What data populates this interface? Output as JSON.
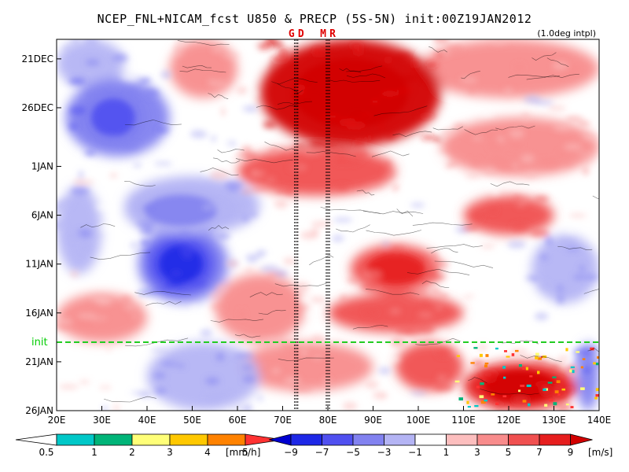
{
  "chart_data": {
    "type": "heatmap",
    "title": "NCEP_FNL+NICAM_fcst U850 & PRECP (5S-5N) init:00Z19JAN2012",
    "subtitle": "(1.0deg intpl)",
    "x_axis": {
      "range": [
        20,
        140
      ],
      "ticks": [
        20,
        30,
        40,
        50,
        60,
        70,
        80,
        90,
        100,
        110,
        120,
        130,
        140
      ],
      "tick_labels": [
        "20E",
        "30E",
        "40E",
        "50E",
        "60E",
        "70E",
        "80E",
        "90E",
        "100E",
        "110E",
        "120E",
        "130E",
        "140E"
      ]
    },
    "y_axis": {
      "range_days": [
        "19DEC2011",
        "26JAN2012"
      ],
      "tick_labels": [
        "21DEC",
        "26DEC",
        "1JAN",
        "6JAN",
        "11JAN",
        "16JAN",
        "21JAN",
        "26JAN"
      ],
      "tick_dates": [
        "2011-12-21",
        "2011-12-26",
        "2012-01-01",
        "2012-01-06",
        "2012-01-11",
        "2012-01-16",
        "2012-01-21",
        "2012-01-26"
      ]
    },
    "markers": [
      {
        "label": "G",
        "lon": 73,
        "style": "dotted"
      },
      {
        "label": "D",
        "lon": 73,
        "style": "dotted"
      },
      {
        "label": "M",
        "lon": 80,
        "style": "dotted"
      },
      {
        "label": "R",
        "lon": 80,
        "style": "dotted"
      }
    ],
    "init_line": {
      "label": "init",
      "date": "2012-01-19",
      "color": "#22cc22"
    },
    "u850_features": [
      {
        "lon_range": [
          65,
          105
        ],
        "date_range": [
          "2011-12-19",
          "2011-12-30"
        ],
        "value": 9
      },
      {
        "lon_range": [
          110,
          135
        ],
        "date_range": [
          "2012-01-21",
          "2012-01-26"
        ],
        "value": 7
      },
      {
        "lon_range": [
          85,
          105
        ],
        "date_range": [
          "2012-01-09",
          "2012-01-14"
        ],
        "value": 5
      },
      {
        "lon_range": [
          40,
          55
        ],
        "date_range": [
          "2012-01-08",
          "2012-01-14"
        ],
        "value": -7
      },
      {
        "lon_range": [
          25,
          40
        ],
        "date_range": [
          "2011-12-24",
          "2011-12-30"
        ],
        "value": -5
      },
      {
        "lon_range": [
          35,
          60
        ],
        "date_range": [
          "2012-01-03",
          "2012-01-08"
        ],
        "value": -3
      }
    ],
    "precip_colorbar": {
      "unit": "[mm/h]",
      "labels": [
        "0.5",
        "1",
        "2",
        "3",
        "4",
        "5"
      ],
      "colors": [
        "#00c8c8",
        "#00b478",
        "#ffff78",
        "#ffc800",
        "#ff8200",
        "#ff3232"
      ]
    },
    "u850_colorbar": {
      "unit": "[m/s]",
      "labels": [
        "−9",
        "−7",
        "−5",
        "−3",
        "−1",
        "1",
        "3",
        "5",
        "7",
        "9"
      ],
      "colors": [
        "#0000d0",
        "#1e28e6",
        "#5050f0",
        "#8282f0",
        "#b4b4f4",
        "#ffffff",
        "#fcbebe",
        "#f88c8c",
        "#f05050",
        "#e61e1e",
        "#d20000"
      ]
    }
  }
}
